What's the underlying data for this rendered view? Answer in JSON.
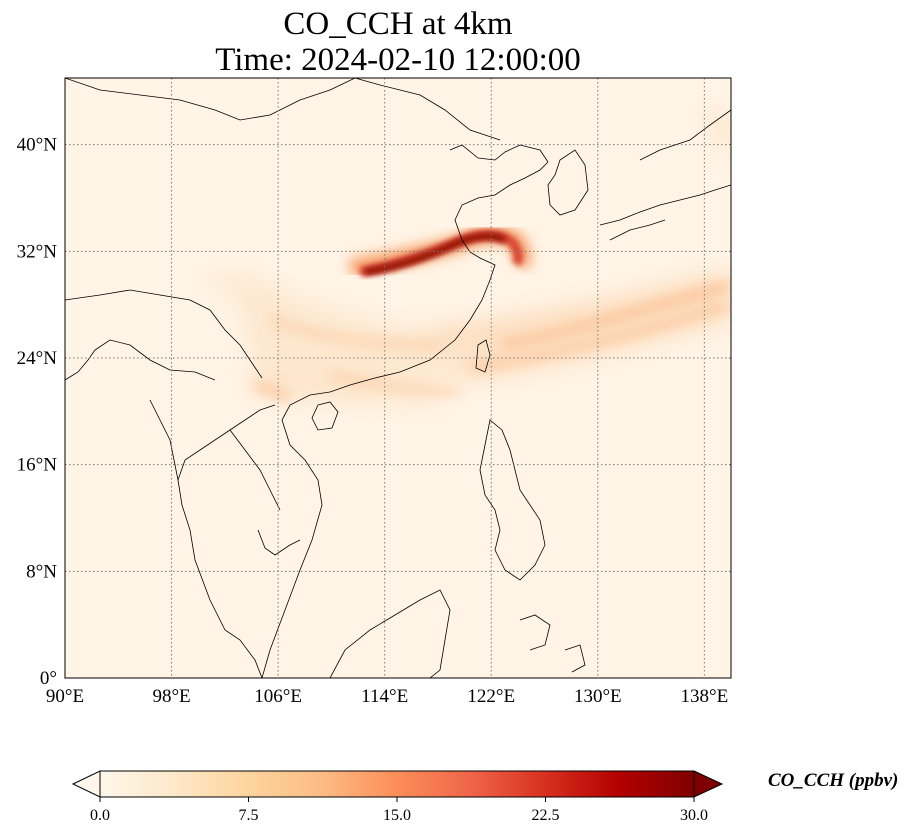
{
  "title": {
    "line1": "CO_CCH at 4km",
    "line2": "Time: 2024-02-10 12:00:00"
  },
  "map": {
    "projection": "PlateCarree",
    "lon_range": [
      90,
      140
    ],
    "lat_range": [
      0,
      45
    ],
    "gridlines": true,
    "x_ticks": [
      {
        "value": 90,
        "label": "90°E"
      },
      {
        "value": 98,
        "label": "98°E"
      },
      {
        "value": 106,
        "label": "106°E"
      },
      {
        "value": 114,
        "label": "114°E"
      },
      {
        "value": 122,
        "label": "122°E"
      },
      {
        "value": 130,
        "label": "130°E"
      },
      {
        "value": 138,
        "label": "138°E"
      }
    ],
    "y_ticks": [
      {
        "value": 0,
        "label": "0°"
      },
      {
        "value": 8,
        "label": "8°N"
      },
      {
        "value": 16,
        "label": "16°N"
      },
      {
        "value": 24,
        "label": "24°N"
      },
      {
        "value": 32,
        "label": "32°N"
      },
      {
        "value": 40,
        "label": "40°N"
      }
    ],
    "field_colors": {
      "background": "#fff4e6",
      "low": "#fde3c6",
      "mid": "#f9a066",
      "high": "#c81d10",
      "max": "#7f0000"
    }
  },
  "colorbar": {
    "title": "CO_CCH (ppbv)",
    "min": 0,
    "max": 30,
    "extend": "both",
    "colormap": "OrRd",
    "stops": [
      "#fff7ec",
      "#fee8c8",
      "#fdd49e",
      "#fdbb84",
      "#fc8d59",
      "#ef6548",
      "#d7301f",
      "#b30000",
      "#7f0000"
    ],
    "ticks": [
      {
        "value": 0,
        "label": "0.0"
      },
      {
        "value": 7.5,
        "label": "7.5"
      },
      {
        "value": 15,
        "label": "15.0"
      },
      {
        "value": 22.5,
        "label": "22.5"
      },
      {
        "value": 30,
        "label": "30.0"
      }
    ]
  }
}
